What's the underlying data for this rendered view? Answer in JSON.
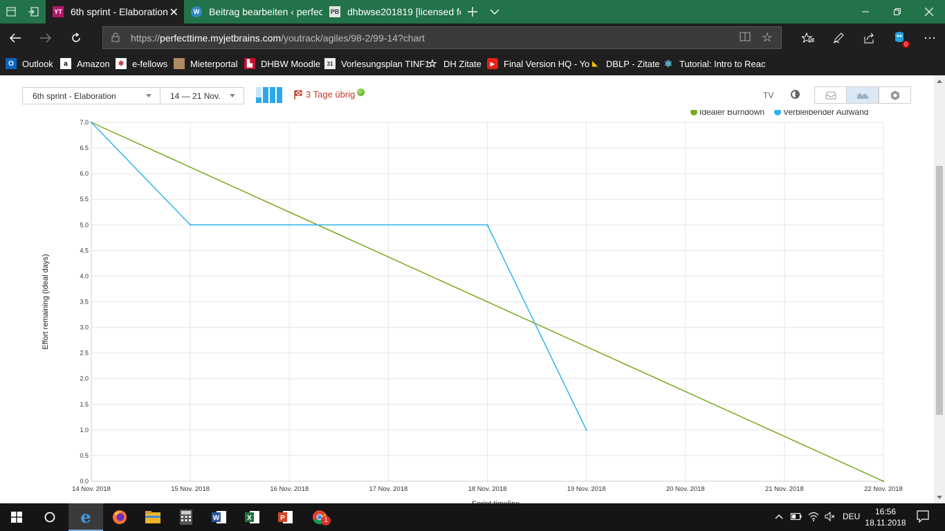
{
  "browser": {
    "tabs": [
      {
        "title": "6th sprint - Elaboration",
        "icon": "youtrack-icon",
        "active": true
      },
      {
        "title": "Beitrag bearbeiten ‹ perfect",
        "icon": "wordpress-icon",
        "active": false
      },
      {
        "title": "dhbwse201819 [licensed fo",
        "icon": "pb-icon",
        "active": false
      }
    ],
    "url_prefix": "https://",
    "url_host": "perfecttime.myjetbrains.com",
    "url_path": "/youtrack/agiles/98-2/99-14?chart",
    "hub_badge": "0",
    "favorites": [
      {
        "label": "Outlook",
        "icon": "outlook-icon"
      },
      {
        "label": "Amazon",
        "icon": "amazon-icon"
      },
      {
        "label": "e-fellows",
        "icon": "efellows-icon"
      },
      {
        "label": "Mieterportal",
        "icon": "box-icon"
      },
      {
        "label": "DHBW Moodle",
        "icon": "moodle-icon"
      },
      {
        "label": "Vorlesungsplan TINF1",
        "icon": "calendar-icon"
      },
      {
        "label": "DH Zitate",
        "icon": "star-icon"
      },
      {
        "label": "Final Version HQ - Yo",
        "icon": "youtube-icon"
      },
      {
        "label": "DBLP - Zitate",
        "icon": "dblp-icon"
      },
      {
        "label": "Tutorial: Intro to Reac",
        "icon": "react-icon"
      }
    ]
  },
  "toolbar": {
    "sprint_select": "6th sprint - Elaboration",
    "date_range": "14 — 21 Nov.",
    "remaining": "3 Tage übrig",
    "tv_label": "TV",
    "progress_fill": [
      0.35,
      1.0,
      1.0,
      1.0
    ],
    "view_modes": [
      {
        "icon": "inbox-icon",
        "selected": false
      },
      {
        "icon": "chart-icon",
        "selected": true
      },
      {
        "icon": "gear-icon",
        "selected": false
      }
    ]
  },
  "chart_data": {
    "type": "line",
    "xlabel": "Sprint timeline",
    "ylabel": "Effort remaining (Ideal days)",
    "x": [
      "14 Nov. 2018",
      "15 Nov. 2018",
      "16 Nov. 2018",
      "17 Nov. 2018",
      "18 Nov. 2018",
      "19 Nov. 2018",
      "20 Nov. 2018",
      "21 Nov. 2018",
      "22 Nov. 2018"
    ],
    "yticks": [
      "0.0",
      "0.5",
      "1.0",
      "1.5",
      "2.0",
      "2.5",
      "3.0",
      "3.5",
      "4.0",
      "4.5",
      "5.0",
      "5.5",
      "6.0",
      "6.5",
      "7.0"
    ],
    "ylim": [
      0,
      7
    ],
    "grid": true,
    "legend_position": "top-right",
    "series": [
      {
        "name": "Idealer Burndown",
        "color": "#7aa81e",
        "points": [
          [
            0,
            7.0
          ],
          [
            8,
            0.0
          ]
        ]
      },
      {
        "name": "Verbleibender Aufwand",
        "color": "#2fb3f0",
        "points": [
          [
            0,
            7.0
          ],
          [
            1,
            5.0
          ],
          [
            4,
            5.0
          ],
          [
            5,
            1.0
          ]
        ]
      }
    ]
  },
  "taskbar": {
    "time": "16:56",
    "date": "18.11.2018",
    "lang": "DEU",
    "apps": [
      "edge-icon",
      "firefox-icon",
      "explorer-icon",
      "calculator-icon",
      "word-icon",
      "excel-icon",
      "powerpoint-icon",
      "chrome-icon"
    ],
    "chrome_badge": "1"
  }
}
